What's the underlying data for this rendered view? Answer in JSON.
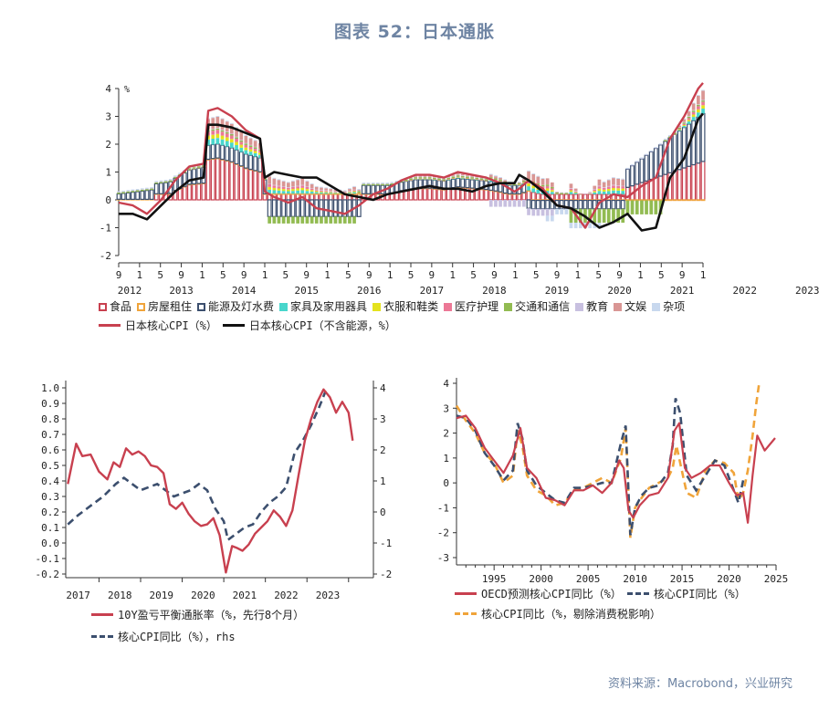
{
  "title": "图表 52：日本通胀",
  "source": "资料来源：Macrobond，兴业研究",
  "colors": {
    "red": "#c8404f",
    "black": "#111111",
    "navy": "#3c4f6e",
    "orange": "#f0a43a",
    "teal": "#48d6cc",
    "yellow": "#e4e21e",
    "pink": "#ec7896",
    "green": "#92bb52",
    "lavender": "#c8c0e0",
    "rose": "#d99694",
    "lightblue": "#c8d8ee"
  },
  "legend_top": [
    {
      "label": "食品",
      "color": "#c8404f",
      "style": "box"
    },
    {
      "label": "房屋租住",
      "color": "#f0a43a",
      "style": "box"
    },
    {
      "label": "能源及灯水费",
      "color": "#3c4f6e",
      "style": "box"
    },
    {
      "label": "家具及家用器具",
      "color": "#48d6cc",
      "style": "fill"
    },
    {
      "label": "衣服和鞋类",
      "color": "#e4e21e",
      "style": "fill"
    },
    {
      "label": "医疗护理",
      "color": "#ec7896",
      "style": "fill"
    },
    {
      "label": "交通和通信",
      "color": "#92bb52",
      "style": "fill"
    },
    {
      "label": "教育",
      "color": "#c8c0e0",
      "style": "fill"
    },
    {
      "label": "文娱",
      "color": "#d99694",
      "style": "fill"
    },
    {
      "label": "杂项",
      "color": "#c8d8ee",
      "style": "fill"
    },
    {
      "label": "日本核心CPI（%）",
      "color": "#c8404f",
      "style": "line"
    },
    {
      "label": "日本核心CPI（不含能源，%）",
      "color": "#111111",
      "style": "line"
    }
  ],
  "legend_left": [
    {
      "label": "10Y盈亏平衡通胀率（%，先行8个月）",
      "color": "#c8404f",
      "style": "line"
    },
    {
      "label": "核心CPI同比（%），rhs",
      "color": "#3c4f6e",
      "style": "dash"
    }
  ],
  "legend_right": [
    {
      "label": "OECD预测核心CPI同比（%）",
      "color": "#c8404f",
      "style": "line"
    },
    {
      "label": "核心CPI同比（%）",
      "color": "#3c4f6e",
      "style": "dash"
    },
    {
      "label": "核心CPI同比（%，剔除消费税影响）",
      "color": "#f0a43a",
      "style": "dash"
    }
  ],
  "chart_data": [
    {
      "type": "bar",
      "stacked": true,
      "unit_label": "%",
      "ylim": [
        -2,
        4
      ],
      "yticks": [
        -2,
        -1,
        0,
        1,
        2,
        3,
        4
      ],
      "tick_months": [
        "9",
        "1",
        "5",
        "9",
        "1",
        "5",
        "9",
        "1",
        "5",
        "9",
        "1",
        "5",
        "9",
        "1",
        "5",
        "9",
        "1",
        "5",
        "9",
        "1",
        "5",
        "9",
        "1",
        "5",
        "9",
        "1",
        "5",
        "9",
        "1"
      ],
      "year_labels": [
        "2012",
        "2013",
        "2014",
        "2015",
        "2016",
        "2017",
        "2018",
        "2019",
        "2020",
        "2021",
        "2022",
        "2023"
      ],
      "x_start": "2012-09",
      "x_end": "2023-01",
      "series": [
        {
          "name": "日本核心CPI（%）",
          "type": "line",
          "color": "#c8404f",
          "x": [
            "2012-09",
            "2012-12",
            "2013-03",
            "2013-06",
            "2013-09",
            "2013-12",
            "2014-03",
            "2014-04",
            "2014-06",
            "2014-09",
            "2014-12",
            "2015-03",
            "2015-04",
            "2015-06",
            "2015-09",
            "2015-12",
            "2016-03",
            "2016-06",
            "2016-09",
            "2016-12",
            "2017-03",
            "2017-06",
            "2017-09",
            "2017-12",
            "2018-03",
            "2018-06",
            "2018-09",
            "2018-12",
            "2019-03",
            "2019-06",
            "2019-09",
            "2019-10",
            "2019-12",
            "2020-03",
            "2020-06",
            "2020-09",
            "2020-12",
            "2021-03",
            "2021-06",
            "2021-09",
            "2021-12",
            "2022-03",
            "2022-06",
            "2022-09",
            "2022-12",
            "2023-01"
          ],
          "values": [
            -0.1,
            -0.2,
            -0.5,
            0.0,
            0.7,
            1.2,
            1.3,
            3.2,
            3.3,
            3.0,
            2.5,
            2.2,
            0.3,
            0.1,
            -0.1,
            0.1,
            -0.3,
            -0.4,
            -0.5,
            -0.2,
            0.2,
            0.4,
            0.7,
            0.9,
            0.9,
            0.8,
            1.0,
            0.9,
            0.8,
            0.6,
            0.3,
            0.4,
            0.7,
            0.4,
            -0.2,
            -0.3,
            -1.0,
            -0.1,
            0.2,
            0.1,
            0.5,
            0.8,
            2.2,
            3.0,
            4.0,
            4.2
          ]
        },
        {
          "name": "日本核心CPI（不含能源，%）",
          "type": "line",
          "color": "#111111",
          "x": [
            "2012-09",
            "2012-12",
            "2013-03",
            "2013-06",
            "2013-09",
            "2013-12",
            "2014-03",
            "2014-04",
            "2014-06",
            "2014-09",
            "2014-12",
            "2015-03",
            "2015-04",
            "2015-06",
            "2015-09",
            "2015-12",
            "2016-03",
            "2016-06",
            "2016-09",
            "2016-12",
            "2017-03",
            "2017-06",
            "2017-09",
            "2017-12",
            "2018-03",
            "2018-06",
            "2018-09",
            "2018-12",
            "2019-03",
            "2019-06",
            "2019-09",
            "2019-10",
            "2019-12",
            "2020-03",
            "2020-06",
            "2020-09",
            "2020-12",
            "2021-03",
            "2021-06",
            "2021-09",
            "2021-12",
            "2022-03",
            "2022-06",
            "2022-09",
            "2022-12",
            "2023-01"
          ],
          "values": [
            -0.5,
            -0.5,
            -0.7,
            -0.2,
            0.3,
            0.7,
            0.8,
            2.7,
            2.7,
            2.6,
            2.4,
            2.2,
            0.8,
            1.0,
            0.9,
            0.8,
            0.8,
            0.5,
            0.2,
            0.1,
            0.0,
            0.2,
            0.3,
            0.4,
            0.5,
            0.4,
            0.4,
            0.3,
            0.5,
            0.6,
            0.6,
            0.9,
            0.7,
            0.3,
            -0.2,
            -0.3,
            -0.6,
            -1.0,
            -0.8,
            -0.5,
            -1.1,
            -1.0,
            0.8,
            1.5,
            2.9,
            3.1
          ]
        }
      ],
      "stack_components": [
        "食品",
        "房屋租住",
        "能源及灯水费",
        "家具及家用器具",
        "衣服和鞋类",
        "医疗护理",
        "交通和通信",
        "教育",
        "文娱",
        "杂项"
      ]
    },
    {
      "type": "line",
      "xlim": [
        2016.7,
        2023.9
      ],
      "xticks": [
        2017,
        2018,
        2019,
        2020,
        2021,
        2022,
        2023
      ],
      "ylim_left": [
        -0.2,
        1.0
      ],
      "yticks_left": [
        -0.2,
        -0.1,
        0.0,
        0.1,
        0.2,
        0.3,
        0.4,
        0.5,
        0.6,
        0.7,
        0.8,
        0.9,
        1.0
      ],
      "ylim_right": [
        -2,
        4
      ],
      "yticks_right": [
        -2,
        -1,
        0,
        1,
        2,
        3,
        4
      ],
      "series": [
        {
          "name": "10Y盈亏平衡通胀率（%，先行8个月）",
          "axis": "left",
          "style": "solid",
          "color": "#c8404f",
          "x": [
            2016.75,
            2016.95,
            2017.1,
            2017.3,
            2017.5,
            2017.7,
            2017.85,
            2018.0,
            2018.15,
            2018.3,
            2018.45,
            2018.6,
            2018.75,
            2018.9,
            2019.05,
            2019.2,
            2019.35,
            2019.5,
            2019.65,
            2019.8,
            2019.95,
            2020.1,
            2020.25,
            2020.4,
            2020.55,
            2020.7,
            2020.8,
            2020.95,
            2021.1,
            2021.25,
            2021.4,
            2021.55,
            2021.7,
            2021.85,
            2022.0,
            2022.15,
            2022.3,
            2022.45,
            2022.6,
            2022.75,
            2022.9,
            2023.05,
            2023.2,
            2023.35,
            2023.5,
            2023.6
          ],
          "values": [
            0.38,
            0.64,
            0.56,
            0.57,
            0.46,
            0.41,
            0.52,
            0.49,
            0.61,
            0.57,
            0.59,
            0.56,
            0.5,
            0.49,
            0.45,
            0.25,
            0.22,
            0.26,
            0.19,
            0.14,
            0.11,
            0.12,
            0.16,
            0.05,
            -0.19,
            -0.02,
            -0.03,
            -0.05,
            -0.01,
            0.06,
            0.1,
            0.14,
            0.21,
            0.17,
            0.11,
            0.21,
            0.44,
            0.66,
            0.8,
            0.91,
            0.99,
            0.94,
            0.84,
            0.91,
            0.84,
            0.66
          ]
        },
        {
          "name": "核心CPI同比（%），rhs",
          "axis": "right",
          "style": "dash",
          "color": "#3c4f6e",
          "x": [
            2016.75,
            2017.0,
            2017.3,
            2017.6,
            2017.9,
            2018.1,
            2018.3,
            2018.5,
            2018.7,
            2018.9,
            2019.1,
            2019.3,
            2019.5,
            2019.7,
            2019.9,
            2020.1,
            2020.3,
            2020.5,
            2020.6,
            2020.8,
            2021.0,
            2021.2,
            2021.4,
            2021.6,
            2021.8,
            2022.0,
            2022.2,
            2022.4,
            2022.6,
            2022.8,
            2022.95
          ],
          "values": [
            -0.4,
            -0.1,
            0.2,
            0.5,
            0.9,
            1.1,
            0.9,
            0.7,
            0.8,
            0.9,
            0.7,
            0.5,
            0.6,
            0.7,
            0.9,
            0.7,
            0.1,
            -0.3,
            -0.9,
            -0.7,
            -0.5,
            -0.4,
            0.0,
            0.3,
            0.5,
            0.8,
            1.9,
            2.3,
            2.8,
            3.4,
            3.9
          ]
        }
      ]
    },
    {
      "type": "line",
      "xlim": [
        1991,
        2025
      ],
      "xticks": [
        1995,
        2000,
        2005,
        2010,
        2015,
        2020,
        2025
      ],
      "ylim": [
        -3,
        4
      ],
      "yticks": [
        -3,
        -2,
        -1,
        0,
        1,
        2,
        3,
        4
      ],
      "series": [
        {
          "name": "OECD预测核心CPI同比（%）",
          "style": "solid",
          "color": "#c8404f",
          "x": [
            1991.0,
            1992.0,
            1993.0,
            1994.0,
            1995.0,
            1996.0,
            1997.0,
            1997.8,
            1998.5,
            1999.5,
            2000.5,
            2001.5,
            2002.5,
            2003.5,
            2004.5,
            2005.5,
            2006.5,
            2007.5,
            2008.3,
            2008.8,
            2009.3,
            2009.8,
            2010.5,
            2011.5,
            2012.5,
            2013.5,
            2014.2,
            2014.7,
            2015.3,
            2016.0,
            2017.0,
            2018.0,
            2019.0,
            2020.0,
            2020.8,
            2021.5,
            2022.0,
            2022.5,
            2023.0,
            2023.8,
            2024.9
          ],
          "values": [
            2.6,
            2.7,
            2.2,
            1.4,
            0.9,
            0.4,
            1.1,
            2.2,
            0.6,
            0.2,
            -0.6,
            -0.7,
            -0.9,
            -0.3,
            -0.3,
            -0.1,
            -0.4,
            0.0,
            0.9,
            0.6,
            -1.1,
            -1.4,
            -0.9,
            -0.5,
            -0.4,
            0.2,
            2.1,
            2.4,
            0.6,
            0.2,
            0.4,
            0.7,
            0.7,
            0.0,
            -0.5,
            -0.4,
            -1.6,
            0.3,
            1.9,
            1.3,
            1.8
          ]
        },
        {
          "name": "核心CPI同比（%）",
          "style": "dash",
          "color": "#3c4f6e",
          "x": [
            1991.0,
            1992.0,
            1993.0,
            1994.0,
            1995.0,
            1996.0,
            1997.0,
            1997.5,
            1998.0,
            1998.5,
            1999.5,
            2000.5,
            2001.5,
            2002.5,
            2003.5,
            2004.5,
            2005.5,
            2006.5,
            2007.5,
            2008.5,
            2009.0,
            2009.5,
            2010.0,
            2010.7,
            2011.5,
            2012.5,
            2013.5,
            2014.0,
            2014.3,
            2014.8,
            2015.5,
            2016.5,
            2017.5,
            2018.5,
            2019.5,
            2020.5,
            2021.0,
            2021.5
          ],
          "values": [
            2.7,
            2.6,
            2.1,
            1.2,
            0.7,
            0.1,
            0.5,
            2.4,
            1.8,
            0.5,
            -0.1,
            -0.4,
            -0.7,
            -0.8,
            -0.2,
            -0.2,
            -0.1,
            0.0,
            0.0,
            1.6,
            2.3,
            -2.1,
            -1.0,
            -0.5,
            -0.2,
            -0.1,
            0.4,
            1.5,
            3.4,
            2.8,
            0.3,
            -0.3,
            0.3,
            0.9,
            0.7,
            -0.3,
            -0.8,
            0.1
          ]
        },
        {
          "name": "核心CPI同比（%，剔除消费税影响）",
          "style": "dash",
          "color": "#f0a43a",
          "x": [
            1991.0,
            1992.0,
            1993.0,
            1994.0,
            1995.0,
            1996.0,
            1997.0,
            1997.5,
            1998.0,
            1998.5,
            1999.5,
            2000.5,
            2001.5,
            2002.5,
            2003.5,
            2004.5,
            2005.5,
            2006.5,
            2007.5,
            2008.5,
            2009.0,
            2009.5,
            2010.0,
            2010.7,
            2011.5,
            2012.5,
            2013.5,
            2014.0,
            2014.4,
            2014.8,
            2015.5,
            2016.5,
            2017.5,
            2018.5,
            2019.5,
            2020.5,
            2021.0,
            2021.5,
            2022.0,
            2022.5,
            2022.9,
            2023.2
          ],
          "values": [
            3.1,
            2.5,
            2.0,
            1.2,
            0.8,
            0.0,
            0.3,
            2.1,
            1.5,
            0.3,
            -0.3,
            -0.5,
            -0.9,
            -0.8,
            -0.3,
            -0.2,
            0.0,
            0.2,
            0.0,
            1.0,
            2.2,
            -2.2,
            -1.0,
            -0.6,
            -0.2,
            0.0,
            0.2,
            0.6,
            1.5,
            0.8,
            -0.4,
            -0.6,
            0.5,
            0.9,
            0.8,
            0.4,
            -0.7,
            -0.4,
            0.5,
            1.9,
            3.2,
            4.0
          ]
        }
      ]
    }
  ]
}
